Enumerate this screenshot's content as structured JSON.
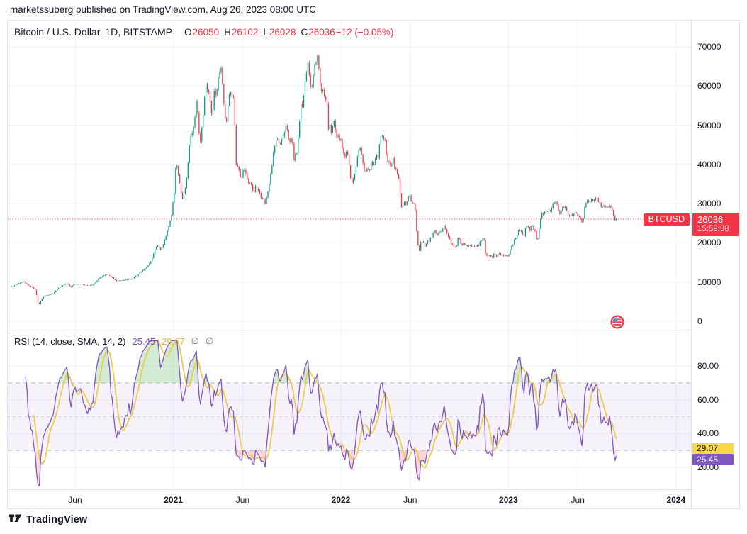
{
  "page": {
    "attribution": "marketssuberg published on TradingView.com, Aug 26, 2023 08:00 UTC",
    "footer_brand": "TradingView"
  },
  "chart": {
    "title": "Bitcoin / U.S. Dollar, 1D, BITSTAMP",
    "ohlc": {
      "open_label": "O",
      "open": "26050",
      "high_label": "H",
      "high": "26102",
      "low_label": "L",
      "low": "26028",
      "close_label": "C",
      "close": "26036",
      "change": "−12 (−0.05%)"
    },
    "currency": "USD",
    "price_label": {
      "symbol": "BTCUSD",
      "price": "26036",
      "countdown": "15:59:38"
    }
  },
  "rsi": {
    "title": "RSI (14, close, SMA, 14, 2)",
    "value": "25.45",
    "ma": "29.07",
    "icon": "∅"
  },
  "colors": {
    "up": "#089981",
    "down": "#f23645",
    "accent_red": "#f23645",
    "grid": "#eef0f5",
    "band_fill": "rgba(126,87,194,0.08)",
    "band_line": "#787b86",
    "rsi_line": "#7e57c2",
    "rsi_ma": "#edc94f",
    "over_fill": "rgba(76,175,80,0.25)",
    "under_fill": "rgba(242,54,69,0.2)",
    "badge_yellow": "#f7d648",
    "badge_purple": "#7e57c2"
  },
  "chart_data": {
    "type": "candlestick",
    "title": "Bitcoin / U.S. Dollar, 1D, BITSTAMP",
    "ylabel": "USD",
    "x_unit": "days since 2020-01-15",
    "price_ticks": [
      70000,
      60000,
      50000,
      40000,
      30000,
      20000,
      10000,
      0
    ],
    "price_ylim": [
      0,
      73000
    ],
    "last": {
      "open": 26050,
      "high": 26102,
      "low": 26028,
      "close": 26036,
      "change": -12,
      "change_pct": -0.05
    },
    "time_ticks": [
      {
        "label": "Jun",
        "day": 138,
        "bold": false
      },
      {
        "label": "2021",
        "day": 352,
        "bold": true
      },
      {
        "label": "Jun",
        "day": 503,
        "bold": false
      },
      {
        "label": "2022",
        "day": 717,
        "bold": true
      },
      {
        "label": "Jun",
        "day": 868,
        "bold": false
      },
      {
        "label": "2023",
        "day": 1082,
        "bold": true
      },
      {
        "label": "Jun",
        "day": 1233,
        "bold": false
      },
      {
        "label": "2024",
        "day": 1447,
        "bold": true
      }
    ],
    "rsi": {
      "type": "line",
      "params": "14, close, SMA, 14, 2",
      "last": 25.45,
      "ma_last": 29.07,
      "band": [
        30,
        70
      ],
      "mid": 50,
      "ticks": [
        {
          "label": "80.00",
          "v": 80
        },
        {
          "label": "60.00",
          "v": 60
        },
        {
          "label": "40.00",
          "v": 40
        },
        {
          "label": "20.00",
          "v": 20
        }
      ]
    },
    "price_anchors": [
      [
        0,
        8900
      ],
      [
        12,
        9500
      ],
      [
        25,
        10250
      ],
      [
        37,
        9100
      ],
      [
        45,
        8650
      ],
      [
        52,
        7900
      ],
      [
        57,
        4800
      ],
      [
        59,
        4100
      ],
      [
        63,
        5300
      ],
      [
        68,
        6200
      ],
      [
        75,
        6500
      ],
      [
        90,
        7100
      ],
      [
        105,
        8800
      ],
      [
        120,
        9700
      ],
      [
        128,
        8700
      ],
      [
        135,
        9500
      ],
      [
        150,
        9450
      ],
      [
        165,
        9200
      ],
      [
        178,
        9250
      ],
      [
        190,
        11000
      ],
      [
        205,
        11900
      ],
      [
        215,
        11500
      ],
      [
        228,
        10300
      ],
      [
        240,
        10450
      ],
      [
        252,
        10700
      ],
      [
        262,
        10800
      ],
      [
        275,
        11900
      ],
      [
        285,
        13100
      ],
      [
        295,
        13800
      ],
      [
        305,
        15600
      ],
      [
        312,
        18400
      ],
      [
        318,
        19200
      ],
      [
        323,
        18100
      ],
      [
        330,
        19400
      ],
      [
        340,
        23300
      ],
      [
        347,
        26500
      ],
      [
        350,
        29000
      ],
      [
        354,
        33000
      ],
      [
        358,
        40800
      ],
      [
        362,
        38200
      ],
      [
        366,
        35500
      ],
      [
        370,
        32100
      ],
      [
        373,
        30900
      ],
      [
        378,
        34300
      ],
      [
        383,
        38300
      ],
      [
        388,
        46400
      ],
      [
        394,
        48600
      ],
      [
        399,
        52100
      ],
      [
        403,
        57500
      ],
      [
        407,
        49700
      ],
      [
        410,
        45200
      ],
      [
        415,
        50400
      ],
      [
        419,
        54900
      ],
      [
        423,
        61200
      ],
      [
        427,
        57800
      ],
      [
        430,
        58900
      ],
      [
        433,
        54700
      ],
      [
        437,
        52300
      ],
      [
        440,
        58800
      ],
      [
        444,
        58100
      ],
      [
        448,
        59800
      ],
      [
        452,
        63500
      ],
      [
        455,
        64600
      ],
      [
        458,
        63100
      ],
      [
        461,
        56200
      ],
      [
        464,
        53800
      ],
      [
        466,
        49100
      ],
      [
        470,
        54000
      ],
      [
        474,
        57800
      ],
      [
        479,
        58300
      ],
      [
        483,
        56700
      ],
      [
        486,
        49500
      ],
      [
        488,
        42900
      ],
      [
        490,
        37000
      ],
      [
        493,
        40600
      ],
      [
        496,
        37300
      ],
      [
        500,
        35700
      ],
      [
        505,
        39200
      ],
      [
        510,
        37300
      ],
      [
        515,
        35500
      ],
      [
        520,
        35800
      ],
      [
        524,
        33500
      ],
      [
        527,
        32200
      ],
      [
        531,
        34600
      ],
      [
        535,
        33900
      ],
      [
        540,
        32700
      ],
      [
        544,
        31500
      ],
      [
        548,
        31800
      ],
      [
        552,
        29800
      ],
      [
        556,
        32100
      ],
      [
        560,
        33900
      ],
      [
        565,
        38200
      ],
      [
        570,
        42800
      ],
      [
        575,
        45600
      ],
      [
        580,
        47100
      ],
      [
        584,
        44400
      ],
      [
        588,
        46300
      ],
      [
        592,
        47800
      ],
      [
        598,
        49900
      ],
      [
        603,
        46900
      ],
      [
        607,
        45100
      ],
      [
        611,
        47100
      ],
      [
        615,
        40700
      ],
      [
        619,
        42800
      ],
      [
        622,
        43200
      ],
      [
        625,
        48200
      ],
      [
        629,
        54700
      ],
      [
        633,
        55000
      ],
      [
        636,
        57400
      ],
      [
        639,
        61700
      ],
      [
        643,
        64300
      ],
      [
        645,
        66000
      ],
      [
        648,
        62300
      ],
      [
        652,
        58500
      ],
      [
        655,
        60900
      ],
      [
        658,
        63300
      ],
      [
        661,
        66900
      ],
      [
        664,
        65000
      ],
      [
        666,
        68500
      ],
      [
        669,
        64800
      ],
      [
        672,
        60300
      ],
      [
        676,
        58700
      ],
      [
        679,
        59400
      ],
      [
        682,
        56300
      ],
      [
        685,
        57300
      ],
      [
        688,
        53700
      ],
      [
        690,
        49300
      ],
      [
        694,
        50100
      ],
      [
        697,
        47300
      ],
      [
        700,
        50800
      ],
      [
        703,
        50700
      ],
      [
        707,
        46800
      ],
      [
        710,
        47100
      ],
      [
        713,
        46500
      ],
      [
        717,
        46200
      ],
      [
        721,
        43600
      ],
      [
        725,
        41700
      ],
      [
        729,
        43100
      ],
      [
        733,
        42400
      ],
      [
        736,
        38700
      ],
      [
        738,
        36900
      ],
      [
        741,
        35100
      ],
      [
        744,
        36300
      ],
      [
        748,
        37900
      ],
      [
        752,
        41600
      ],
      [
        755,
        43600
      ],
      [
        758,
        44400
      ],
      [
        762,
        42400
      ],
      [
        765,
        40100
      ],
      [
        768,
        38400
      ],
      [
        772,
        38300
      ],
      [
        775,
        39200
      ],
      [
        778,
        37800
      ],
      [
        781,
        39400
      ],
      [
        784,
        41000
      ],
      [
        787,
        38900
      ],
      [
        790,
        40900
      ],
      [
        794,
        42600
      ],
      [
        797,
        41100
      ],
      [
        800,
        44000
      ],
      [
        803,
        46900
      ],
      [
        806,
        47100
      ],
      [
        810,
        46400
      ],
      [
        813,
        45800
      ],
      [
        817,
        42100
      ],
      [
        820,
        40600
      ],
      [
        824,
        39700
      ],
      [
        828,
        40500
      ],
      [
        831,
        41500
      ],
      [
        834,
        39500
      ],
      [
        837,
        38600
      ],
      [
        840,
        37700
      ],
      [
        843,
        36000
      ],
      [
        845,
        34000
      ],
      [
        847,
        31000
      ],
      [
        849,
        29100
      ],
      [
        851,
        30100
      ],
      [
        853,
        29300
      ],
      [
        855,
        30200
      ],
      [
        858,
        29500
      ],
      [
        861,
        30400
      ],
      [
        864,
        31700
      ],
      [
        868,
        31700
      ],
      [
        871,
        29500
      ],
      [
        874,
        30200
      ],
      [
        877,
        29900
      ],
      [
        880,
        27300
      ],
      [
        882,
        23200
      ],
      [
        884,
        20500
      ],
      [
        886,
        18300
      ],
      [
        888,
        18000
      ],
      [
        890,
        20600
      ],
      [
        893,
        20100
      ],
      [
        896,
        21100
      ],
      [
        899,
        19000
      ],
      [
        902,
        19300
      ],
      [
        905,
        20600
      ],
      [
        908,
        19900
      ],
      [
        911,
        21200
      ],
      [
        914,
        20800
      ],
      [
        917,
        22500
      ],
      [
        920,
        23200
      ],
      [
        923,
        22500
      ],
      [
        926,
        21600
      ],
      [
        929,
        22600
      ],
      [
        932,
        23300
      ],
      [
        935,
        23000
      ],
      [
        938,
        23200
      ],
      [
        941,
        24400
      ],
      [
        944,
        23900
      ],
      [
        947,
        23200
      ],
      [
        950,
        21400
      ],
      [
        953,
        21600
      ],
      [
        956,
        20000
      ],
      [
        959,
        19800
      ],
      [
        962,
        18800
      ],
      [
        965,
        19000
      ],
      [
        967,
        18800
      ],
      [
        970,
        19300
      ],
      [
        973,
        22400
      ],
      [
        976,
        20200
      ],
      [
        979,
        19600
      ],
      [
        982,
        19400
      ],
      [
        985,
        20100
      ],
      [
        988,
        19300
      ],
      [
        991,
        19500
      ],
      [
        994,
        19100
      ],
      [
        997,
        19600
      ],
      [
        1000,
        19300
      ],
      [
        1003,
        19100
      ],
      [
        1006,
        19200
      ],
      [
        1009,
        19100
      ],
      [
        1012,
        19200
      ],
      [
        1015,
        19500
      ],
      [
        1018,
        19300
      ],
      [
        1021,
        20800
      ],
      [
        1024,
        20600
      ],
      [
        1027,
        21100
      ],
      [
        1029,
        20600
      ],
      [
        1031,
        18300
      ],
      [
        1033,
        16000
      ],
      [
        1035,
        16900
      ],
      [
        1038,
        16700
      ],
      [
        1041,
        16900
      ],
      [
        1044,
        16600
      ],
      [
        1047,
        16200
      ],
      [
        1050,
        17200
      ],
      [
        1053,
        16900
      ],
      [
        1056,
        16500
      ],
      [
        1059,
        17150
      ],
      [
        1063,
        17100
      ],
      [
        1066,
        16800
      ],
      [
        1069,
        16700
      ],
      [
        1072,
        16800
      ],
      [
        1075,
        16600
      ],
      [
        1078,
        16550
      ],
      [
        1081,
        16700
      ],
      [
        1084,
        17200
      ],
      [
        1087,
        18900
      ],
      [
        1090,
        19300
      ],
      [
        1093,
        19900
      ],
      [
        1096,
        21100
      ],
      [
        1099,
        20900
      ],
      [
        1102,
        22700
      ],
      [
        1105,
        23000
      ],
      [
        1108,
        23100
      ],
      [
        1111,
        22900
      ],
      [
        1114,
        21800
      ],
      [
        1117,
        21600
      ],
      [
        1120,
        24300
      ],
      [
        1123,
        24600
      ],
      [
        1126,
        23500
      ],
      [
        1129,
        23200
      ],
      [
        1132,
        24800
      ],
      [
        1135,
        23900
      ],
      [
        1138,
        23400
      ],
      [
        1141,
        22400
      ],
      [
        1144,
        20200
      ],
      [
        1147,
        22000
      ],
      [
        1150,
        24700
      ],
      [
        1153,
        26900
      ],
      [
        1156,
        27900
      ],
      [
        1159,
        27400
      ],
      [
        1162,
        28300
      ],
      [
        1165,
        27800
      ],
      [
        1168,
        28000
      ],
      [
        1171,
        28500
      ],
      [
        1174,
        28200
      ],
      [
        1177,
        29200
      ],
      [
        1180,
        30400
      ],
      [
        1183,
        30000
      ],
      [
        1186,
        30500
      ],
      [
        1189,
        29300
      ],
      [
        1192,
        27700
      ],
      [
        1195,
        27400
      ],
      [
        1198,
        28900
      ],
      [
        1201,
        29500
      ],
      [
        1204,
        28800
      ],
      [
        1207,
        29400
      ],
      [
        1210,
        27700
      ],
      [
        1213,
        27000
      ],
      [
        1216,
        26900
      ],
      [
        1219,
        26800
      ],
      [
        1222,
        27200
      ],
      [
        1225,
        27100
      ],
      [
        1228,
        27700
      ],
      [
        1231,
        27300
      ],
      [
        1234,
        27200
      ],
      [
        1237,
        26300
      ],
      [
        1240,
        25800
      ],
      [
        1243,
        25100
      ],
      [
        1246,
        26500
      ],
      [
        1249,
        30000
      ],
      [
        1252,
        30700
      ],
      [
        1255,
        30500
      ],
      [
        1258,
        30700
      ],
      [
        1261,
        30500
      ],
      [
        1264,
        31200
      ],
      [
        1267,
        30600
      ],
      [
        1270,
        31300
      ],
      [
        1273,
        31500
      ],
      [
        1276,
        31300
      ],
      [
        1279,
        30300
      ],
      [
        1282,
        29900
      ],
      [
        1285,
        29200
      ],
      [
        1288,
        29300
      ],
      [
        1291,
        29200
      ],
      [
        1294,
        29300
      ],
      [
        1297,
        29100
      ],
      [
        1300,
        29400
      ],
      [
        1303,
        29300
      ],
      [
        1306,
        29200
      ],
      [
        1309,
        28200
      ],
      [
        1311,
        26600
      ],
      [
        1313,
        26100
      ],
      [
        1315,
        26050
      ],
      [
        1317,
        26200
      ],
      [
        1319,
        26036
      ]
    ]
  }
}
